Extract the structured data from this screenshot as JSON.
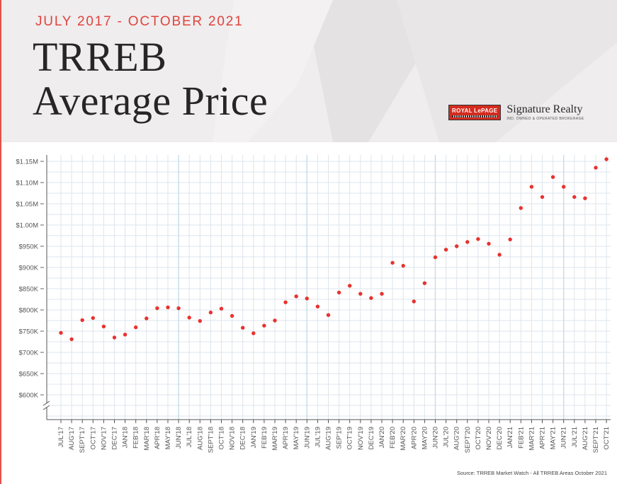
{
  "header": {
    "date_range": "JULY 2017 - OCTOBER 2021",
    "title_line1": "TRREB",
    "title_line2": "Average Price"
  },
  "brand": {
    "logo_text": "ROYAL LePAGE",
    "name": "Signature Realty",
    "tagline": "IND. OWNED & OPERATED BROKERAGE"
  },
  "source": "Source: TRREB Market Watch - All TRREB Areas October 2021",
  "colors": {
    "accent": "#e0433d",
    "point": "#e8322f",
    "grid_minor": "#dde5ec",
    "grid_major": "#c6dcea"
  },
  "chart_data": {
    "type": "scatter",
    "categories": [
      "JUL'17",
      "AUG'17",
      "SEPT'17",
      "OCT'17",
      "NOV'17",
      "DEC'17",
      "JAN'18",
      "FEB'18",
      "MAR'18",
      "APR'18",
      "MAY'18",
      "JUN'18",
      "JUL'18",
      "AUG'18",
      "SEPT'18",
      "OCT'18",
      "NOV'18",
      "DEC'18",
      "JAN'19",
      "FEB'19",
      "MAR'19",
      "APR'19",
      "MAY'19",
      "JUN'19",
      "JUL'19",
      "AUG'19",
      "SEP'19",
      "OCT'19",
      "NOV'19",
      "DEC'19",
      "JAN'20",
      "FEB'20",
      "MAR'20",
      "APR'20",
      "MAY'20",
      "JUN'20",
      "JUL'20",
      "AUG'20",
      "SEPT'20",
      "OCT'20",
      "NOV'20",
      "DEC'20",
      "JAN'21",
      "FEB'21",
      "MAR'21",
      "APR'21",
      "MAY'21",
      "JUN'21",
      "JUL'21",
      "AUG'21",
      "SEPT'21",
      "OCT'21"
    ],
    "values": [
      746000,
      731000,
      776000,
      781000,
      761000,
      735000,
      742000,
      759000,
      780000,
      804000,
      806000,
      804000,
      782000,
      774000,
      794000,
      803000,
      786000,
      758000,
      745000,
      763000,
      775000,
      818000,
      832000,
      827000,
      808000,
      788000,
      841000,
      857000,
      838000,
      828000,
      838000,
      911000,
      904000,
      820000,
      863000,
      924000,
      942000,
      950000,
      960000,
      967000,
      956000,
      930000,
      966000,
      1040000,
      1090000,
      1066000,
      1113000,
      1090000,
      1066000,
      1063000,
      1135000,
      1155000
    ],
    "y_tick_labels": [
      "$600K",
      "$650K",
      "$700K",
      "$750K",
      "$800K",
      "$850K",
      "$900K",
      "$950K",
      "$1.00M",
      "$1.05M",
      "$1.10M",
      "$1.15M"
    ],
    "y_ticks": [
      600000,
      650000,
      700000,
      750000,
      800000,
      850000,
      900000,
      950000,
      1000000,
      1050000,
      1100000,
      1150000
    ],
    "axis_break": true,
    "grid": true
  }
}
